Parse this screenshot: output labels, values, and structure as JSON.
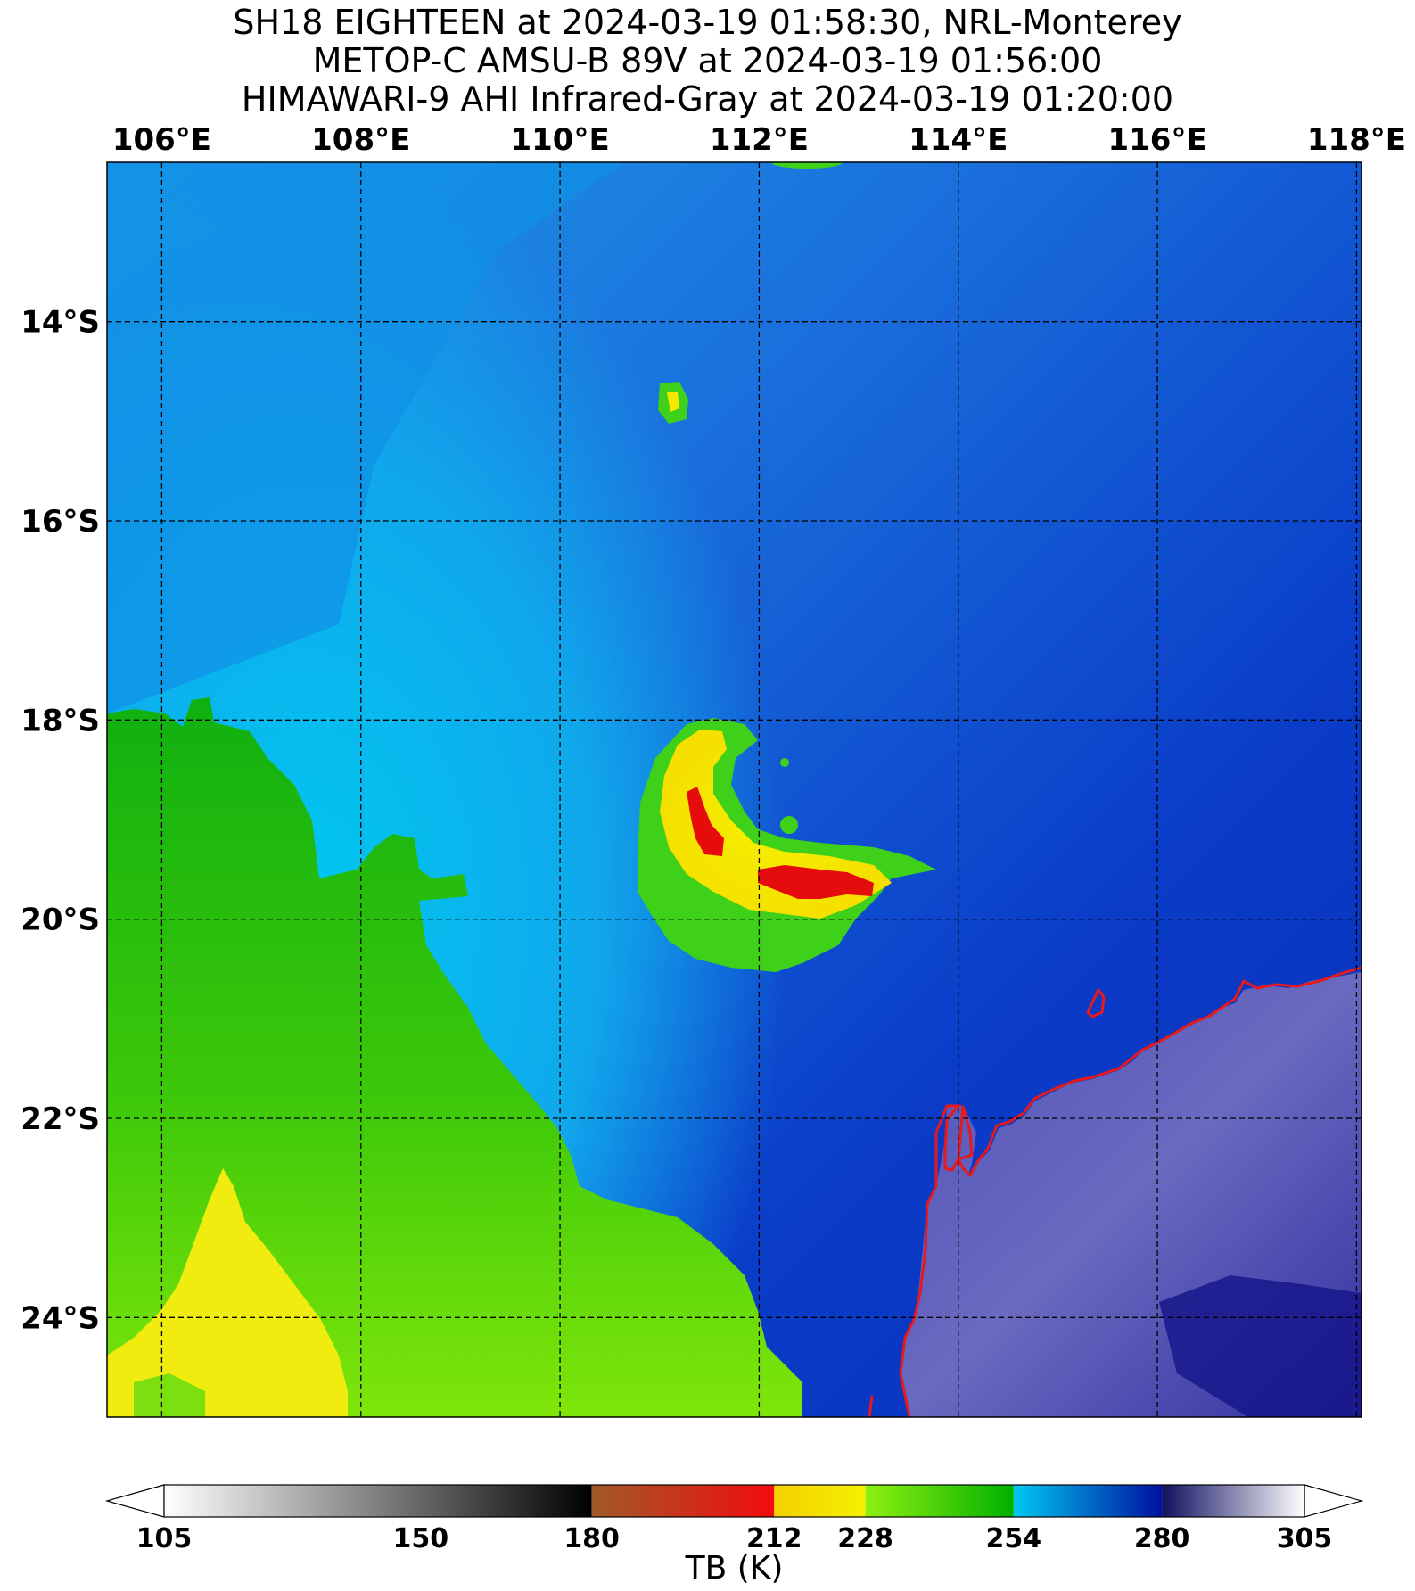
{
  "title": {
    "line1": "SH18 EIGHTEEN at 2024-03-19 01:58:30, NRL-Monterey",
    "line2": "METOP-C AMSU-B 89V at 2024-03-19 01:56:00",
    "line3": "HIMAWARI-9 AHI Infrared-Gray at 2024-03-19 01:20:00"
  },
  "map": {
    "lon_labels": [
      "106°E",
      "108°E",
      "110°E",
      "112°E",
      "114°E",
      "116°E",
      "118°E"
    ],
    "lat_labels": [
      "14°S",
      "16°S",
      "18°S",
      "20°S",
      "22°S",
      "24°S"
    ],
    "lon_range": [
      105.45,
      118.05
    ],
    "lat_range": [
      -25.0,
      -12.4
    ],
    "coastline_color": "#e8191c",
    "gridline_style": "dashed black"
  },
  "colorbar": {
    "tick_labels": [
      "105",
      "150",
      "180",
      "212",
      "228",
      "254",
      "280",
      "305"
    ],
    "tick_values": [
      105,
      150,
      180,
      212,
      228,
      254,
      280,
      305
    ],
    "label": "TB (K)",
    "segments": [
      {
        "from": 105,
        "to": 180,
        "colors": [
          "#ffffff",
          "#000000"
        ]
      },
      {
        "from": 180,
        "to": 212,
        "colors": [
          "#a05a28",
          "#f20c0c"
        ]
      },
      {
        "from": 212,
        "to": 228,
        "colors": [
          "#f5d000",
          "#f5f000"
        ]
      },
      {
        "from": 228,
        "to": 254,
        "colors": [
          "#90f010",
          "#00b000"
        ]
      },
      {
        "from": 254,
        "to": 280,
        "colors": [
          "#00c8f0",
          "#0010a0"
        ]
      },
      {
        "from": 280,
        "to": 305,
        "colors": [
          "#101060",
          "#ffffff"
        ]
      }
    ]
  }
}
